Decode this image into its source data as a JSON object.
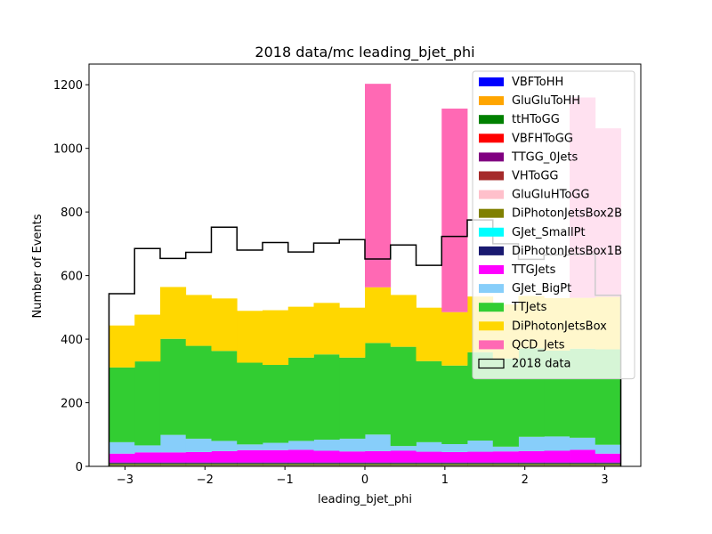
{
  "chart_data": {
    "type": "bar",
    "title": "2018 data/mc leading_bjet_phi",
    "xlabel": "leading_bjet_phi",
    "ylabel": "Number of Events",
    "xlim": [
      -3.45,
      3.45
    ],
    "ylim": [
      0,
      1265
    ],
    "xticks": [
      -3,
      -2,
      -1,
      0,
      1,
      2,
      3
    ],
    "xtick_labels": [
      "−3",
      "−2",
      "−1",
      "0",
      "1",
      "2",
      "3"
    ],
    "yticks": [
      0,
      200,
      400,
      600,
      800,
      1000,
      1200
    ],
    "ytick_labels": [
      "0",
      "200",
      "400",
      "600",
      "800",
      "1000",
      "1200"
    ],
    "bin_edges": [
      -3.2,
      -2.88,
      -2.56,
      -2.24,
      -1.92,
      -1.6,
      -1.28,
      -0.96,
      -0.64,
      -0.32,
      0.0,
      0.32,
      0.64,
      0.96,
      1.28,
      1.6,
      1.92,
      2.24,
      2.56,
      2.88,
      3.2
    ],
    "legend_position": "upper right",
    "stack_series": [
      {
        "name": "VBFToHH",
        "color": "#0000ff",
        "values": [
          2,
          2,
          2,
          2,
          2,
          2,
          2,
          2,
          2,
          2,
          2,
          2,
          2,
          2,
          2,
          2,
          2,
          2,
          2,
          2
        ]
      },
      {
        "name": "GluGluToHH",
        "color": "#ffa500",
        "values": [
          1,
          1,
          1,
          1,
          1,
          1,
          1,
          1,
          1,
          1,
          1,
          1,
          1,
          1,
          1,
          1,
          1,
          1,
          1,
          1
        ]
      },
      {
        "name": "ttHToGG",
        "color": "#008000",
        "values": [
          2,
          2,
          2,
          2,
          2,
          2,
          2,
          2,
          2,
          2,
          2,
          2,
          2,
          2,
          2,
          2,
          2,
          2,
          2,
          2
        ]
      },
      {
        "name": "VBFHToGG",
        "color": "#ff0000",
        "values": [
          0,
          0,
          0,
          0,
          0,
          0,
          0,
          0,
          0,
          0,
          0,
          0,
          0,
          0,
          0,
          0,
          0,
          0,
          0,
          0
        ]
      },
      {
        "name": "TTGG_0Jets",
        "color": "#800080",
        "values": [
          1,
          1,
          1,
          1,
          1,
          1,
          1,
          1,
          1,
          1,
          1,
          1,
          1,
          1,
          1,
          1,
          1,
          1,
          1,
          1
        ]
      },
      {
        "name": "VHToGG",
        "color": "#a52a2a",
        "values": [
          0,
          0,
          0,
          0,
          0,
          0,
          0,
          0,
          0,
          0,
          0,
          0,
          0,
          0,
          0,
          0,
          0,
          0,
          0,
          0
        ]
      },
      {
        "name": "GluGluHToGG",
        "color": "#ffc0cb",
        "values": [
          0,
          0,
          0,
          0,
          0,
          0,
          0,
          0,
          0,
          0,
          0,
          0,
          0,
          0,
          0,
          0,
          0,
          0,
          0,
          0
        ]
      },
      {
        "name": "DiPhotonJetsBox2B",
        "color": "#808000",
        "values": [
          3,
          3,
          3,
          3,
          3,
          3,
          3,
          3,
          3,
          3,
          3,
          3,
          3,
          3,
          3,
          3,
          3,
          3,
          3,
          3
        ]
      },
      {
        "name": "GJet_SmallPt",
        "color": "#00ffff",
        "values": [
          0,
          0,
          0,
          0,
          0,
          0,
          0,
          0,
          0,
          0,
          0,
          0,
          0,
          0,
          0,
          0,
          0,
          0,
          0,
          0
        ]
      },
      {
        "name": "DiPhotonJetsBox1B",
        "color": "#191970",
        "values": [
          3,
          3,
          3,
          3,
          3,
          3,
          3,
          3,
          3,
          3,
          3,
          3,
          3,
          3,
          3,
          3,
          3,
          3,
          3,
          3
        ]
      },
      {
        "name": "TTGJets",
        "color": "#ff00ff",
        "values": [
          28,
          32,
          32,
          33,
          36,
          39,
          39,
          40,
          37,
          35,
          36,
          37,
          34,
          33,
          34,
          35,
          36,
          37,
          40,
          28
        ]
      },
      {
        "name": "GJet_BigPt",
        "color": "#87cefa",
        "values": [
          36,
          22,
          55,
          42,
          32,
          18,
          23,
          28,
          35,
          40,
          52,
          15,
          30,
          25,
          35,
          15,
          45,
          45,
          38,
          28
        ]
      },
      {
        "name": "TTJets",
        "color": "#32cd32",
        "values": [
          235,
          264,
          302,
          292,
          283,
          257,
          245,
          262,
          268,
          255,
          288,
          312,
          255,
          247,
          278,
          277,
          278,
          270,
          280,
          300
        ]
      },
      {
        "name": "DiPhotonJetsBox",
        "color": "#ffd700",
        "values": [
          132,
          147,
          163,
          160,
          165,
          163,
          172,
          160,
          162,
          157,
          175,
          163,
          168,
          168,
          175,
          170,
          165,
          165,
          160,
          165
        ]
      },
      {
        "name": "QCD_Jets",
        "color": "#ff69b4",
        "values": [
          0,
          0,
          0,
          0,
          0,
          0,
          0,
          0,
          0,
          0,
          640,
          0,
          0,
          640,
          0,
          0,
          0,
          0,
          630,
          530
        ]
      }
    ],
    "data_series": {
      "name": "2018 data",
      "color": "#000000",
      "values": [
        543,
        685,
        654,
        673,
        752,
        680,
        704,
        674,
        702,
        713,
        652,
        696,
        632,
        723,
        775,
        700,
        651,
        665,
        667,
        538
      ]
    }
  }
}
